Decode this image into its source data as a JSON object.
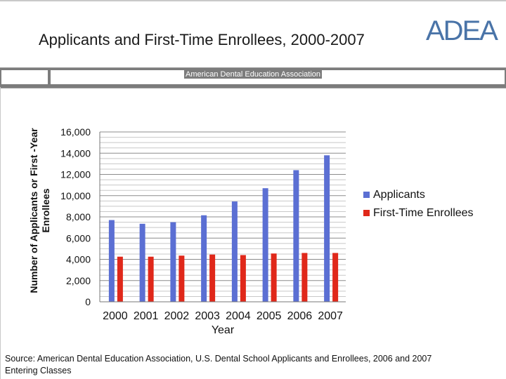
{
  "header": {
    "title": "Applicants and First-Time Enrollees, 2000-2007",
    "logo_text": "ADEA",
    "banner_text": "American Dental Education Association"
  },
  "footer": {
    "source": "Source: American Dental Education Association, U.S. Dental School Applicants and Enrollees, 2006 and 2007 Entering Classes"
  },
  "colors": {
    "applicants": "#5b6fd3",
    "enrollees": "#e0281a"
  },
  "chart_data": {
    "type": "bar",
    "title": "Applicants and First-Time Enrollees, 2000-2007",
    "xlabel": "Year",
    "ylabel": "Number of Applicants or First -Year Enrollees",
    "categories": [
      "2000",
      "2001",
      "2002",
      "2003",
      "2004",
      "2005",
      "2006",
      "2007"
    ],
    "series": [
      {
        "name": "Applicants",
        "values": [
          7700,
          7350,
          7500,
          8150,
          9450,
          10700,
          12400,
          13800
        ]
      },
      {
        "name": "First-Time Enrollees",
        "values": [
          4250,
          4250,
          4350,
          4450,
          4400,
          4550,
          4600,
          4600
        ]
      }
    ],
    "ylim": [
      0,
      16000
    ],
    "yticks": [
      "0",
      "2,000",
      "4,000",
      "6,000",
      "8,000",
      "10,000",
      "12,000",
      "14,000",
      "16,000"
    ],
    "ytick_values": [
      0,
      2000,
      4000,
      6000,
      8000,
      10000,
      12000,
      14000,
      16000
    ],
    "minor_step": 500,
    "grid": true,
    "legend": "right"
  }
}
